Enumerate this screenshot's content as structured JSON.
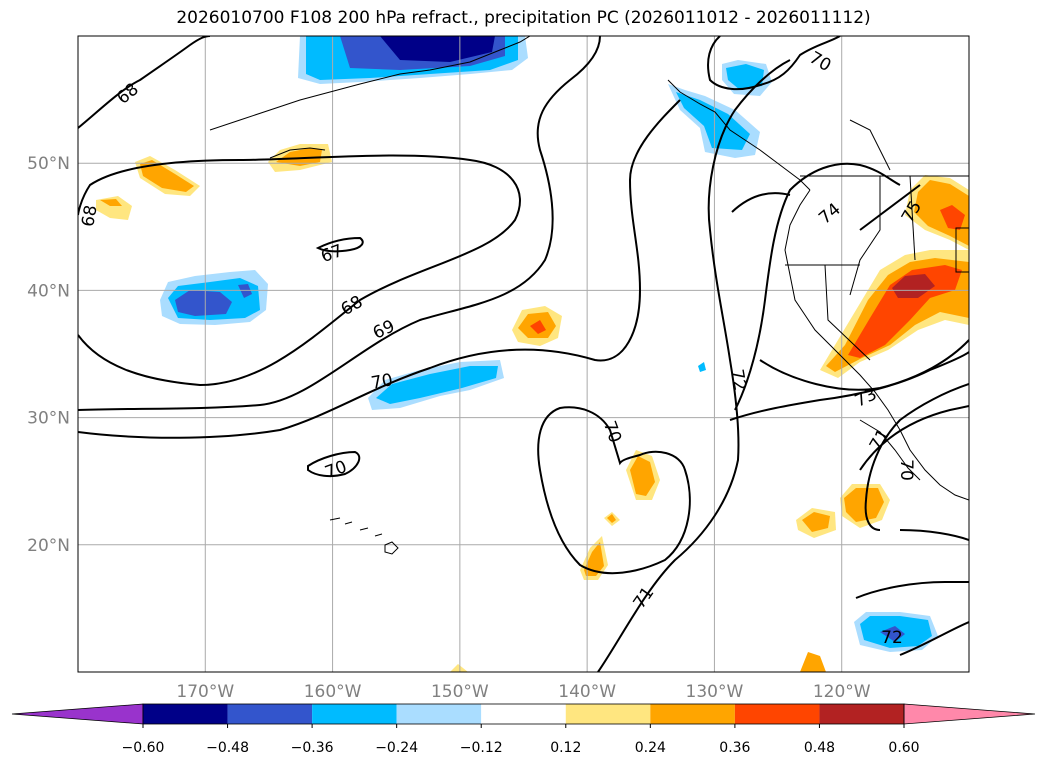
{
  "title": "2026010700 F108 200 hPa refract., precipitation PC (2026011012 - 2026011112)",
  "lat_ticks": [
    {
      "label": "50°N",
      "lat": 50
    },
    {
      "label": "40°N",
      "lat": 40
    },
    {
      "label": "30°N",
      "lat": 30
    },
    {
      "label": "20°N",
      "lat": 20
    }
  ],
  "lon_ticks": [
    {
      "label": "170°W",
      "lon": -170
    },
    {
      "label": "160°W",
      "lon": -160
    },
    {
      "label": "150°W",
      "lon": -150
    },
    {
      "label": "140°W",
      "lon": -140
    },
    {
      "label": "130°W",
      "lon": -130
    },
    {
      "label": "120°W",
      "lon": -120
    }
  ],
  "colorbar": {
    "labels": [
      "−0.60",
      "−0.48",
      "−0.36",
      "−0.24",
      "−0.12",
      "0.12",
      "0.24",
      "0.36",
      "0.48",
      "0.60"
    ],
    "colors": [
      "#9933cc",
      "#000088",
      "#3355cc",
      "#00bbff",
      "#aaddff",
      "#ffffff",
      "#ffe680",
      "#ffa500",
      "#ff4500",
      "#b22222",
      "#ff88aa"
    ]
  },
  "contour_labels": [
    "68",
    "68",
    "67",
    "68",
    "69",
    "70",
    "70",
    "70",
    "70",
    "71",
    "72",
    "72",
    "73",
    "74",
    "75",
    "71",
    "70"
  ]
}
